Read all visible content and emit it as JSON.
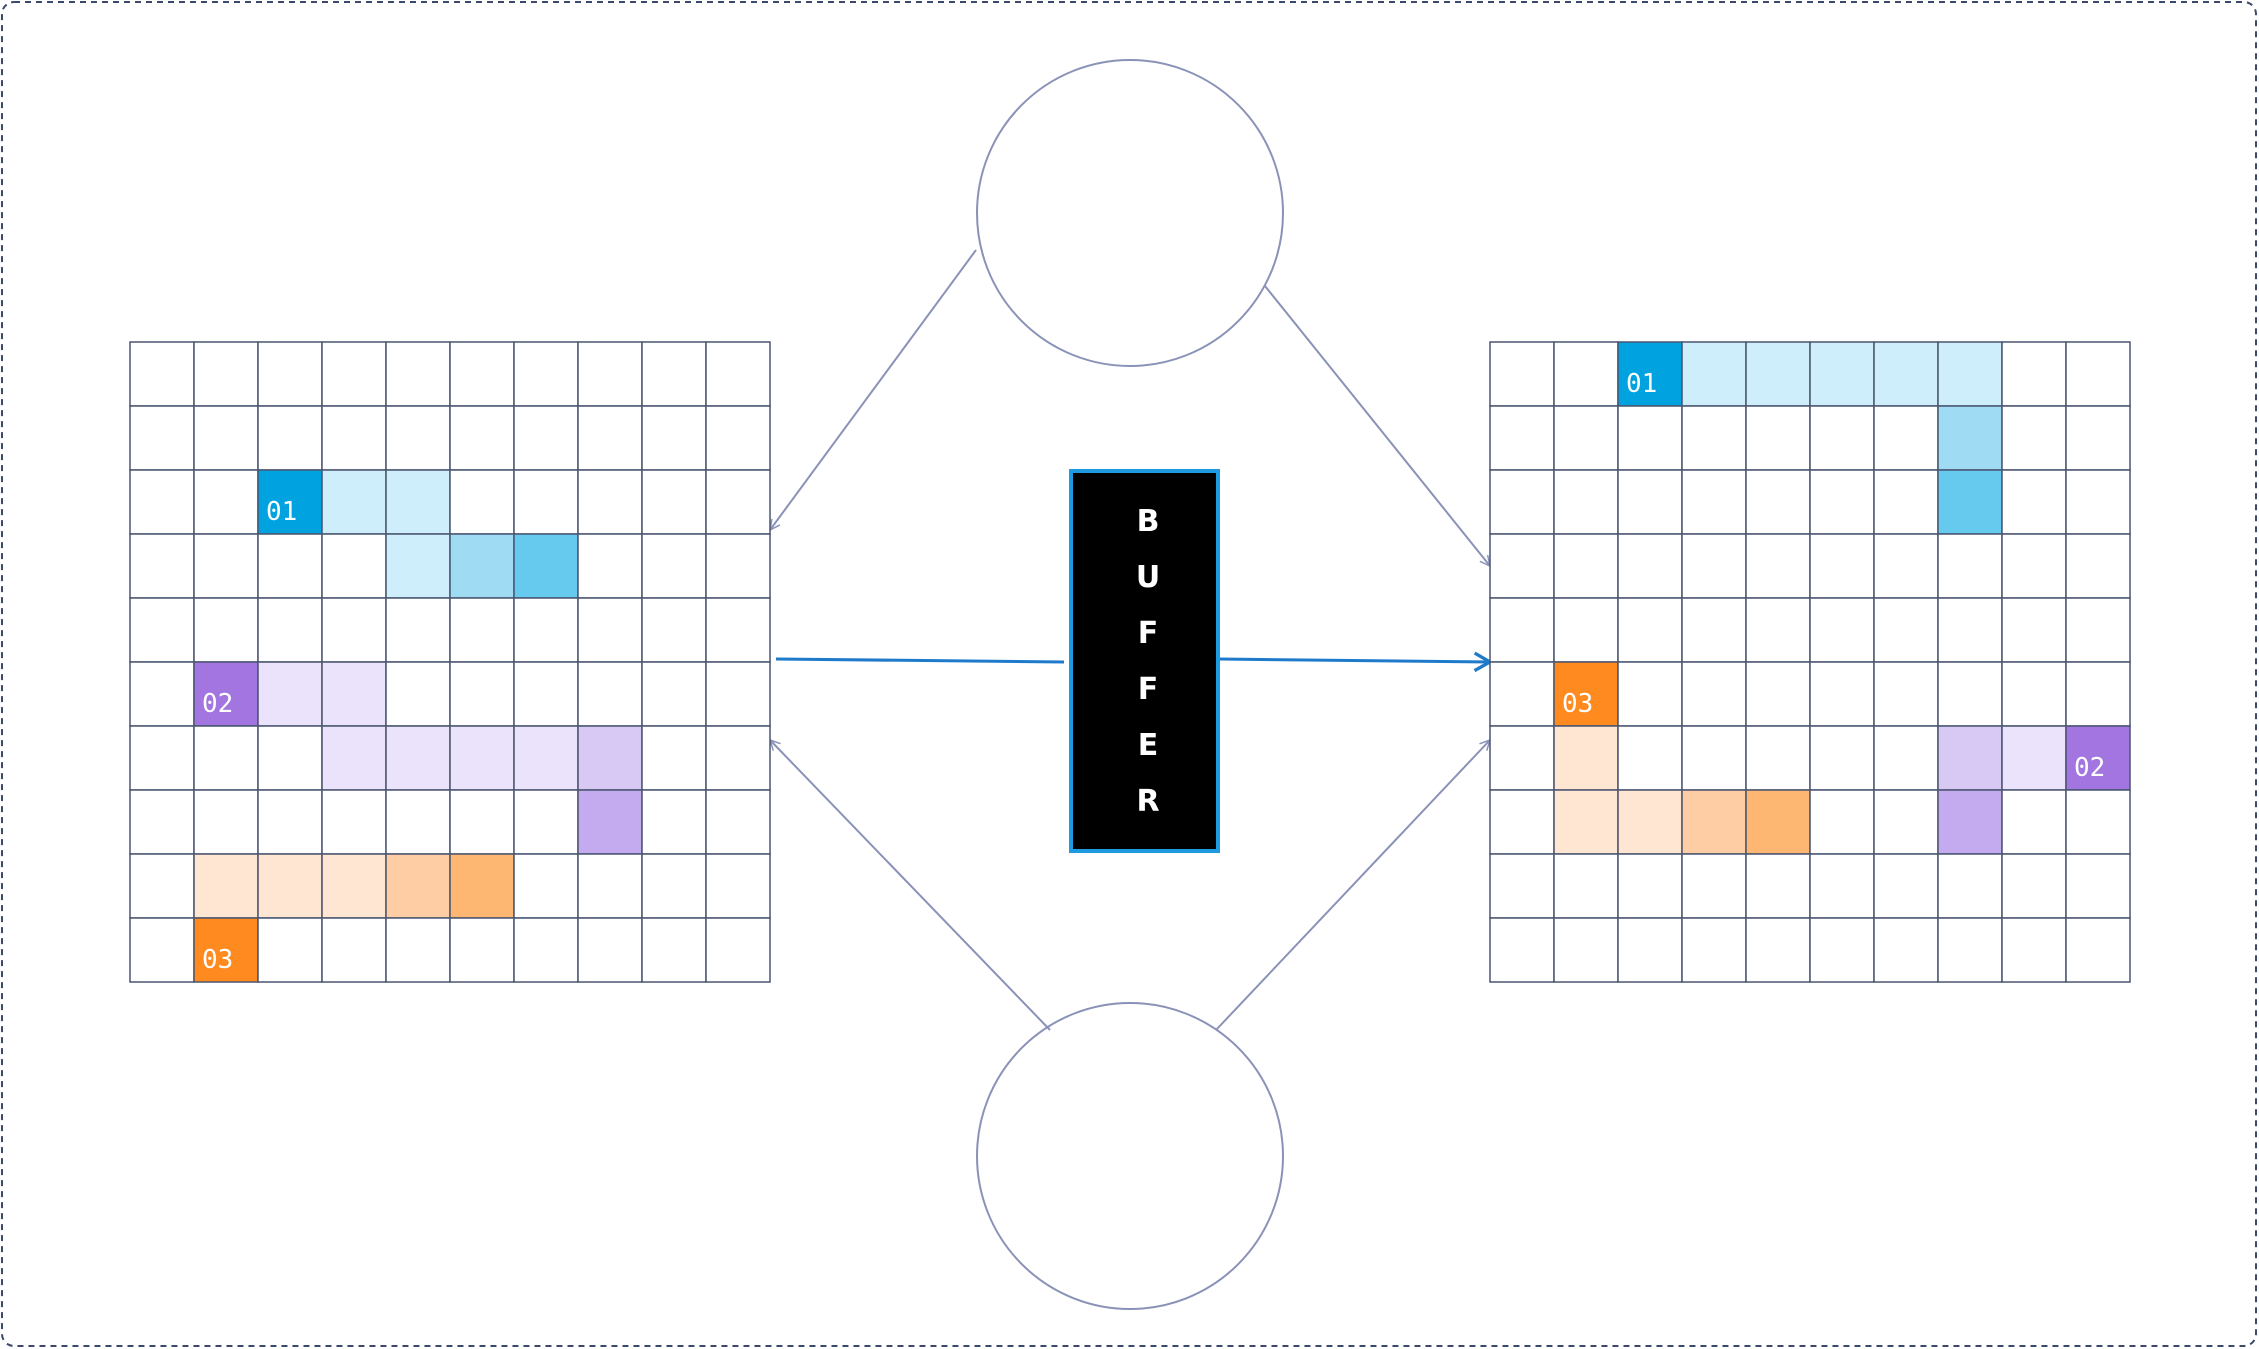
{
  "colors": {
    "frame_border": "#3b4a6b",
    "grid_line": "#4a5570",
    "node_stroke": "#8a92b8",
    "arrow_blue": "#1f7acb",
    "buffer_fill": "#000000",
    "buffer_border": "#1e9be0",
    "buffer_text": "#ffffff",
    "blue": [
      "#00a3e0",
      "#cdeefa",
      "#9fdcf4",
      "#66c9ee"
    ],
    "purple": [
      "#a375e0",
      "#ebe3fb",
      "#d8c8f4",
      "#c4aaee"
    ],
    "orange": [
      "#ff8a1f",
      "#fee6d2",
      "#fecda3",
      "#feb673"
    ]
  },
  "buffer": {
    "letters": [
      "B",
      "U",
      "F",
      "F",
      "E",
      "R"
    ]
  },
  "grids": [
    {
      "name": "left-grid",
      "rows": 10,
      "cols": 10,
      "labels": [
        {
          "row": 2,
          "col": 2,
          "text": "01",
          "color": "blue"
        },
        {
          "row": 5,
          "col": 1,
          "text": "02",
          "color": "purple"
        },
        {
          "row": 9,
          "col": 1,
          "text": "03",
          "color": "orange"
        }
      ],
      "cells": [
        {
          "row": 2,
          "col": 2,
          "color": "blue",
          "shade": 0
        },
        {
          "row": 2,
          "col": 3,
          "color": "blue",
          "shade": 1
        },
        {
          "row": 2,
          "col": 4,
          "color": "blue",
          "shade": 1
        },
        {
          "row": 3,
          "col": 4,
          "color": "blue",
          "shade": 1
        },
        {
          "row": 3,
          "col": 5,
          "color": "blue",
          "shade": 2
        },
        {
          "row": 3,
          "col": 6,
          "color": "blue",
          "shade": 3
        },
        {
          "row": 5,
          "col": 1,
          "color": "purple",
          "shade": 0
        },
        {
          "row": 5,
          "col": 2,
          "color": "purple",
          "shade": 1
        },
        {
          "row": 5,
          "col": 3,
          "color": "purple",
          "shade": 1
        },
        {
          "row": 6,
          "col": 3,
          "color": "purple",
          "shade": 1
        },
        {
          "row": 6,
          "col": 4,
          "color": "purple",
          "shade": 1
        },
        {
          "row": 6,
          "col": 5,
          "color": "purple",
          "shade": 1
        },
        {
          "row": 6,
          "col": 6,
          "color": "purple",
          "shade": 1
        },
        {
          "row": 6,
          "col": 7,
          "color": "purple",
          "shade": 2
        },
        {
          "row": 7,
          "col": 7,
          "color": "purple",
          "shade": 3
        },
        {
          "row": 9,
          "col": 1,
          "color": "orange",
          "shade": 0
        },
        {
          "row": 8,
          "col": 1,
          "color": "orange",
          "shade": 1
        },
        {
          "row": 8,
          "col": 2,
          "color": "orange",
          "shade": 1
        },
        {
          "row": 8,
          "col": 3,
          "color": "orange",
          "shade": 1
        },
        {
          "row": 8,
          "col": 4,
          "color": "orange",
          "shade": 2
        },
        {
          "row": 8,
          "col": 5,
          "color": "orange",
          "shade": 3
        }
      ]
    },
    {
      "name": "right-grid",
      "rows": 10,
      "cols": 10,
      "labels": [
        {
          "row": 0,
          "col": 2,
          "text": "01",
          "color": "blue"
        },
        {
          "row": 6,
          "col": 9,
          "text": "02",
          "color": "purple"
        },
        {
          "row": 5,
          "col": 1,
          "text": "03",
          "color": "orange"
        }
      ],
      "cells": [
        {
          "row": 0,
          "col": 2,
          "color": "blue",
          "shade": 0
        },
        {
          "row": 0,
          "col": 3,
          "color": "blue",
          "shade": 1
        },
        {
          "row": 0,
          "col": 4,
          "color": "blue",
          "shade": 1
        },
        {
          "row": 0,
          "col": 5,
          "color": "blue",
          "shade": 1
        },
        {
          "row": 0,
          "col": 6,
          "color": "blue",
          "shade": 1
        },
        {
          "row": 0,
          "col": 7,
          "color": "blue",
          "shade": 1
        },
        {
          "row": 1,
          "col": 7,
          "color": "blue",
          "shade": 2
        },
        {
          "row": 2,
          "col": 7,
          "color": "blue",
          "shade": 3
        },
        {
          "row": 6,
          "col": 9,
          "color": "purple",
          "shade": 0
        },
        {
          "row": 6,
          "col": 8,
          "color": "purple",
          "shade": 1
        },
        {
          "row": 6,
          "col": 7,
          "color": "purple",
          "shade": 2
        },
        {
          "row": 7,
          "col": 7,
          "color": "purple",
          "shade": 3
        },
        {
          "row": 5,
          "col": 1,
          "color": "orange",
          "shade": 0
        },
        {
          "row": 6,
          "col": 1,
          "color": "orange",
          "shade": 1
        },
        {
          "row": 7,
          "col": 1,
          "color": "orange",
          "shade": 1
        },
        {
          "row": 7,
          "col": 2,
          "color": "orange",
          "shade": 1
        },
        {
          "row": 7,
          "col": 3,
          "color": "orange",
          "shade": 2
        },
        {
          "row": 7,
          "col": 4,
          "color": "orange",
          "shade": 3
        }
      ]
    }
  ]
}
